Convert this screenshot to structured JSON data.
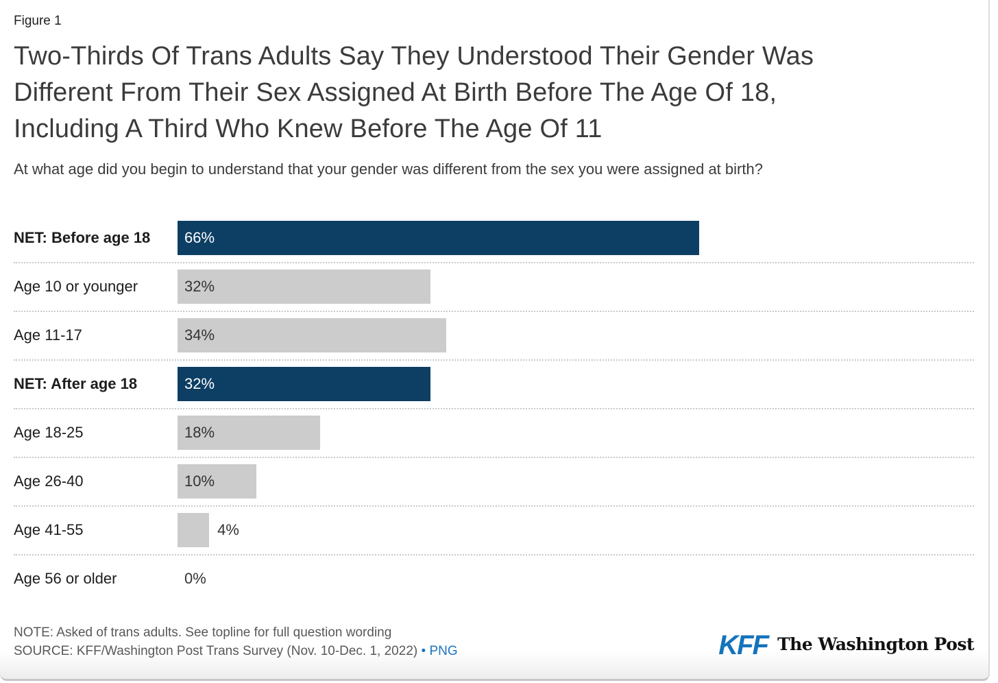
{
  "figure_label": "Figure 1",
  "title": "Two-Thirds Of Trans Adults Say They Understood Their Gender Was\nDifferent From Their Sex Assigned At Birth Before The Age Of 18,\nIncluding A Third Who Knew Before The Age Of 11",
  "subtitle": "At what age did you begin to understand that your gender was different from the sex you were assigned at birth?",
  "chart_data": {
    "type": "bar",
    "orientation": "horizontal",
    "title": "Two-Thirds Of Trans Adults Say They Understood Their Gender Was Different From Their Sex Assigned At Birth Before The Age Of 18, Including A Third Who Knew Before The Age Of 11",
    "xlabel": "",
    "ylabel": "",
    "xlim": [
      0,
      100
    ],
    "legend": "none",
    "grid": "dotted horizontal row separators",
    "categories": [
      "NET: Before age 18",
      "Age 10 or younger",
      "Age 11-17",
      "NET: After age 18",
      "Age 18-25",
      "Age 26-40",
      "Age 41-55",
      "Age 56 or older"
    ],
    "values": [
      66,
      32,
      34,
      32,
      18,
      10,
      4,
      0
    ],
    "value_labels": [
      "66%",
      "32%",
      "34%",
      "32%",
      "18%",
      "10%",
      "4%",
      "0%"
    ],
    "colors": {
      "net_bar": "#0d3e63",
      "sub_bar": "#cccccc",
      "value_on_net": "#ffffff",
      "value_on_sub": "#333333"
    },
    "rows": [
      {
        "label": "NET: Before age 18",
        "value": 66,
        "display": "66%",
        "emphasis": true,
        "value_inside": true
      },
      {
        "label": "Age 10 or younger",
        "value": 32,
        "display": "32%",
        "emphasis": false,
        "value_inside": true
      },
      {
        "label": "Age 11-17",
        "value": 34,
        "display": "34%",
        "emphasis": false,
        "value_inside": true
      },
      {
        "label": "NET: After age 18",
        "value": 32,
        "display": "32%",
        "emphasis": true,
        "value_inside": true
      },
      {
        "label": "Age 18-25",
        "value": 18,
        "display": "18%",
        "emphasis": false,
        "value_inside": true
      },
      {
        "label": "Age 26-40",
        "value": 10,
        "display": "10%",
        "emphasis": false,
        "value_inside": true
      },
      {
        "label": "Age 41-55",
        "value": 4,
        "display": "4%",
        "emphasis": false,
        "value_inside": false
      },
      {
        "label": "Age 56 or older",
        "value": 0,
        "display": "0%",
        "emphasis": false,
        "value_inside": false
      }
    ]
  },
  "footer": {
    "note": "NOTE: Asked of trans adults. See topline for full question wording",
    "source_prefix": "SOURCE: KFF/Washington Post Trans Survey (Nov. 10-Dec. 1, 2022) ",
    "bullet": "•",
    "png_label": "PNG",
    "link_color": "#1b74bf"
  },
  "logos": {
    "kff": "KFF",
    "washington_post": "The Washington Post"
  }
}
